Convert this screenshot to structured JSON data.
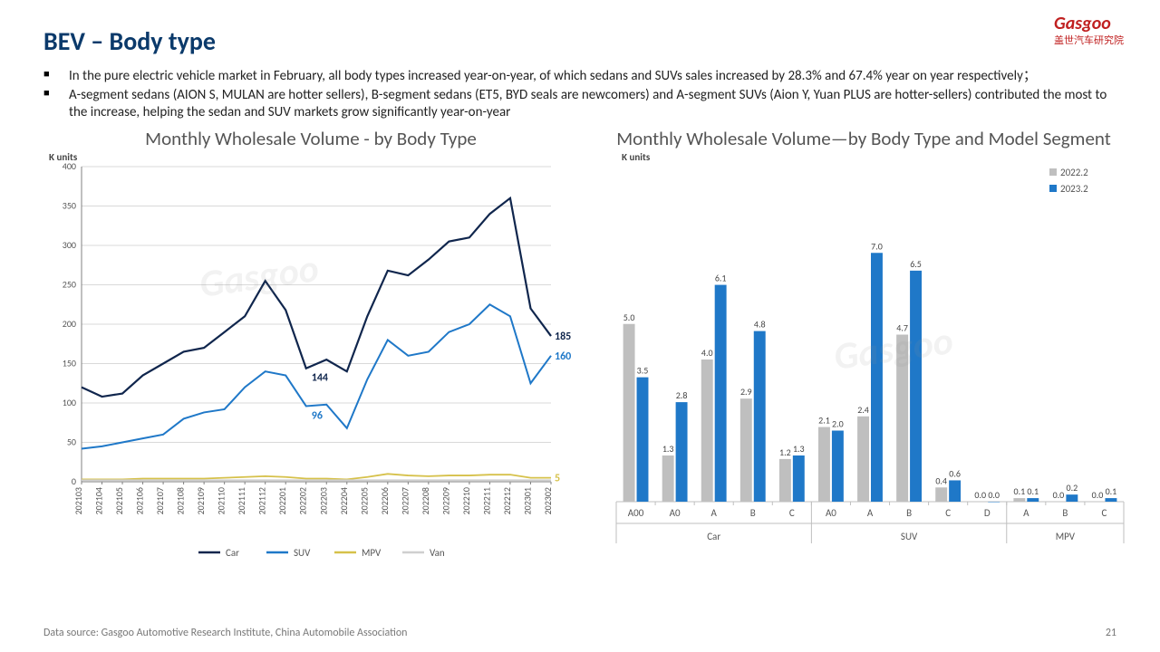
{
  "title": "BEV – Body type",
  "logo": {
    "en": "Gasgoo",
    "cn": "盖世汽车研究院"
  },
  "bullets": [
    "In the pure electric vehicle market in February, all body types increased year-on-year, of which sedans and SUVs sales increased by 28.3% and 67.4% year on year respectively；",
    "A-segment sedans (AION S, MULAN are hotter sellers), B-segment sedans (ET5, BYD seals are newcomers) and A-segment SUVs (Aion Y, Yuan PLUS are hotter-sellers) contributed the most to the increase, helping the sedan and SUV markets grow significantly year-on-year"
  ],
  "line_chart": {
    "title": "Monthly Wholesale Volume - by Body Type",
    "unit_label": "K units",
    "ylim": [
      0,
      400
    ],
    "ytick_step": 50,
    "x_labels": [
      "202103",
      "202104",
      "202105",
      "202106",
      "202107",
      "202108",
      "202109",
      "202110",
      "202111",
      "202112",
      "202201",
      "202202",
      "202203",
      "202204",
      "202205",
      "202206",
      "202207",
      "202208",
      "202209",
      "202210",
      "202211",
      "202212",
      "202301",
      "202302"
    ],
    "series": [
      {
        "name": "Car",
        "color": "#10264d",
        "width": 2.2,
        "values": [
          120,
          108,
          112,
          135,
          150,
          165,
          170,
          190,
          210,
          255,
          218,
          144,
          155,
          140,
          210,
          268,
          262,
          282,
          305,
          310,
          340,
          360,
          220,
          185
        ]
      },
      {
        "name": "SUV",
        "color": "#1f78c8",
        "width": 2.0,
        "values": [
          42,
          45,
          50,
          55,
          60,
          80,
          88,
          92,
          120,
          140,
          135,
          96,
          98,
          68,
          130,
          180,
          160,
          165,
          190,
          200,
          225,
          210,
          125,
          160
        ]
      },
      {
        "name": "MPV",
        "color": "#d6c14a",
        "width": 1.8,
        "values": [
          3,
          3,
          3,
          4,
          4,
          4,
          4,
          5,
          6,
          7,
          6,
          4,
          4,
          3,
          6,
          10,
          8,
          7,
          8,
          8,
          9,
          9,
          5,
          5
        ]
      },
      {
        "name": "Van",
        "color": "#cfcfcf",
        "width": 1.8,
        "values": [
          2,
          2,
          2,
          2,
          2,
          2,
          2,
          2,
          2,
          2,
          2,
          2,
          2,
          2,
          2,
          2,
          2,
          2,
          2,
          2,
          2,
          2,
          2,
          2
        ]
      }
    ],
    "end_labels": [
      {
        "text": "185",
        "color": "#10264d",
        "y": 185
      },
      {
        "text": "160",
        "color": "#1f78c8",
        "y": 160
      },
      {
        "text": "5",
        "color": "#d6c14a",
        "y": 5
      }
    ],
    "mid_labels": [
      {
        "text": "144",
        "color": "#10264d",
        "x_index": 11,
        "y": 144
      },
      {
        "text": "96",
        "color": "#1f78c8",
        "x_index": 11,
        "y": 96
      }
    ],
    "grid_color": "#d9d9d9",
    "axis_color": "#808080",
    "tick_fontsize": 10,
    "legend_items": [
      "Car",
      "SUV",
      "MPV",
      "Van"
    ]
  },
  "bar_chart": {
    "title": "Monthly Wholesale Volume—by Body Type and Model Segment",
    "unit_label": "K units",
    "legend": [
      {
        "label": "2022.2",
        "color": "#bfbfbf"
      },
      {
        "label": "2023.2",
        "color": "#1f78c8"
      }
    ],
    "y_max": 8.0,
    "groups": [
      {
        "super": "Car",
        "items": [
          {
            "seg": "A00",
            "a": 5.0,
            "b": 3.5
          },
          {
            "seg": "A0",
            "a": 1.3,
            "b": 2.8
          },
          {
            "seg": "A",
            "a": 4.0,
            "b": 6.1
          },
          {
            "seg": "B",
            "a": 2.9,
            "b": 4.8
          },
          {
            "seg": "C",
            "a": 1.2,
            "b": 1.3
          }
        ]
      },
      {
        "super": "SUV",
        "items": [
          {
            "seg": "A0",
            "a": 2.1,
            "b": 2.0
          },
          {
            "seg": "A",
            "a": 2.4,
            "b": 7.0
          },
          {
            "seg": "B",
            "a": 4.7,
            "b": 6.5
          },
          {
            "seg": "C",
            "a": 0.4,
            "b": 0.6
          },
          {
            "seg": "D",
            "a": 0.0,
            "b": 0.0
          }
        ]
      },
      {
        "super": "MPV",
        "items": [
          {
            "seg": "A",
            "a": 0.1,
            "b": 0.1
          },
          {
            "seg": "B",
            "a": 0.0,
            "b": 0.2
          },
          {
            "seg": "C",
            "a": 0.0,
            "b": 0.1
          }
        ]
      }
    ],
    "label_fontsize": 10,
    "axis_color": "#bfbfbf",
    "tick_fontsize": 11
  },
  "footer": {
    "source": "Data source: Gasgoo Automotive Research Institute, China Automobile Association",
    "page": "21"
  },
  "watermark": "Gasgoo"
}
